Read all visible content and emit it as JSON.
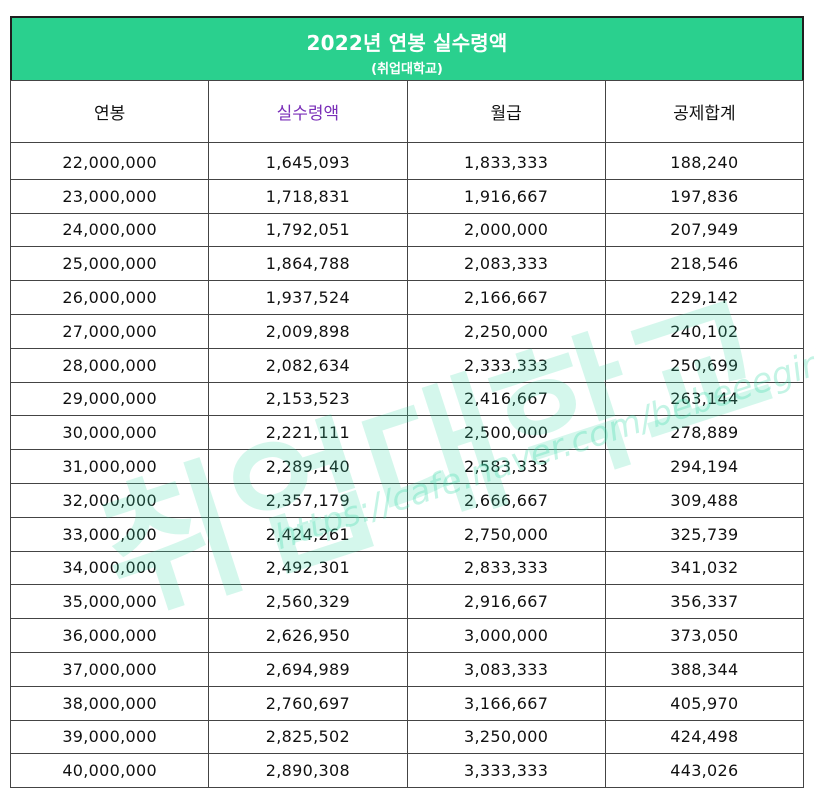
{
  "banner": {
    "title": "2022년 연봉 실수령액",
    "subtitle": "(취업대학교)"
  },
  "columns": [
    "연봉",
    "실수령액",
    "월급",
    "공제합계"
  ],
  "rows": [
    [
      "22,000,000",
      "1,645,093",
      "1,833,333",
      "188,240"
    ],
    [
      "23,000,000",
      "1,718,831",
      "1,916,667",
      "197,836"
    ],
    [
      "24,000,000",
      "1,792,051",
      "2,000,000",
      "207,949"
    ],
    [
      "25,000,000",
      "1,864,788",
      "2,083,333",
      "218,546"
    ],
    [
      "26,000,000",
      "1,937,524",
      "2,166,667",
      "229,142"
    ],
    [
      "27,000,000",
      "2,009,898",
      "2,250,000",
      "240,102"
    ],
    [
      "28,000,000",
      "2,082,634",
      "2,333,333",
      "250,699"
    ],
    [
      "29,000,000",
      "2,153,523",
      "2,416,667",
      "263,144"
    ],
    [
      "30,000,000",
      "2,221,111",
      "2,500,000",
      "278,889"
    ],
    [
      "31,000,000",
      "2,289,140",
      "2,583,333",
      "294,194"
    ],
    [
      "32,000,000",
      "2,357,179",
      "2,666,667",
      "309,488"
    ],
    [
      "33,000,000",
      "2,424,261",
      "2,750,000",
      "325,739"
    ],
    [
      "34,000,000",
      "2,492,301",
      "2,833,333",
      "341,032"
    ],
    [
      "35,000,000",
      "2,560,329",
      "2,916,667",
      "356,337"
    ],
    [
      "36,000,000",
      "2,626,950",
      "3,000,000",
      "373,050"
    ],
    [
      "37,000,000",
      "2,694,989",
      "3,083,333",
      "388,344"
    ],
    [
      "38,000,000",
      "2,760,697",
      "3,166,667",
      "405,970"
    ],
    [
      "39,000,000",
      "2,825,502",
      "3,250,000",
      "424,498"
    ],
    [
      "40,000,000",
      "2,890,308",
      "3,333,333",
      "443,026"
    ]
  ],
  "watermark": {
    "text": "취업대학교",
    "url": "https://cafe.naver.com/bebeeegirls"
  },
  "colors": {
    "banner": "#2ad08e",
    "accent_header": "#7a2fb8"
  }
}
